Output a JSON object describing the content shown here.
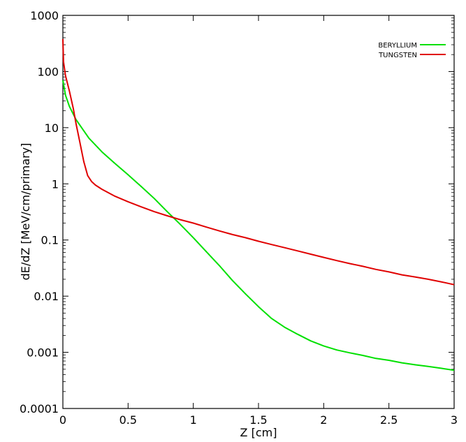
{
  "chart_data": {
    "type": "line",
    "xlabel": "Z [cm]",
    "ylabel": "dE/dZ [MeV/cm/primary]",
    "xlim": [
      0,
      3
    ],
    "ylim": [
      0.0001,
      1000
    ],
    "yscale": "log",
    "x_ticks": [
      "0",
      "0.5",
      "1",
      "1.5",
      "2",
      "2.5",
      "3"
    ],
    "y_ticks": [
      "0.0001",
      "0.001",
      "0.01",
      "0.1",
      "1",
      "10",
      "100",
      "1000"
    ],
    "grid": false,
    "legend_position": "top-right",
    "series": [
      {
        "name": "BERYLLIUM",
        "color": "#00e000",
        "x": [
          0,
          0.02,
          0.05,
          0.1,
          0.15,
          0.2,
          0.3,
          0.4,
          0.5,
          0.6,
          0.7,
          0.8,
          0.9,
          1.0,
          1.1,
          1.2,
          1.3,
          1.4,
          1.5,
          1.6,
          1.7,
          1.8,
          1.9,
          2.0,
          2.1,
          2.2,
          2.3,
          2.4,
          2.5,
          2.6,
          2.7,
          2.8,
          2.9,
          3.0
        ],
        "y": [
          70,
          38,
          24,
          14,
          9.5,
          6.5,
          3.7,
          2.3,
          1.45,
          0.9,
          0.55,
          0.32,
          0.19,
          0.11,
          0.062,
          0.035,
          0.019,
          0.011,
          0.0065,
          0.004,
          0.0028,
          0.0021,
          0.0016,
          0.0013,
          0.0011,
          0.00098,
          0.00088,
          0.00078,
          0.00072,
          0.00065,
          0.0006,
          0.00056,
          0.00052,
          0.00048
        ]
      },
      {
        "name": "TUNGSTEN",
        "color": "#e00000",
        "x": [
          0,
          0.005,
          0.02,
          0.05,
          0.08,
          0.1,
          0.13,
          0.16,
          0.19,
          0.22,
          0.25,
          0.3,
          0.4,
          0.5,
          0.6,
          0.7,
          0.8,
          0.9,
          1.0,
          1.1,
          1.2,
          1.3,
          1.4,
          1.5,
          1.6,
          1.7,
          1.8,
          1.9,
          2.0,
          2.1,
          2.2,
          2.3,
          2.4,
          2.5,
          2.6,
          2.7,
          2.8,
          2.9,
          3.0
        ],
        "y": [
          380,
          150,
          85,
          45,
          22,
          12,
          5.5,
          2.5,
          1.4,
          1.1,
          0.95,
          0.8,
          0.6,
          0.48,
          0.39,
          0.32,
          0.27,
          0.23,
          0.2,
          0.17,
          0.145,
          0.125,
          0.11,
          0.095,
          0.083,
          0.073,
          0.064,
          0.056,
          0.049,
          0.043,
          0.038,
          0.034,
          0.03,
          0.027,
          0.024,
          0.022,
          0.02,
          0.018,
          0.016
        ]
      }
    ]
  }
}
